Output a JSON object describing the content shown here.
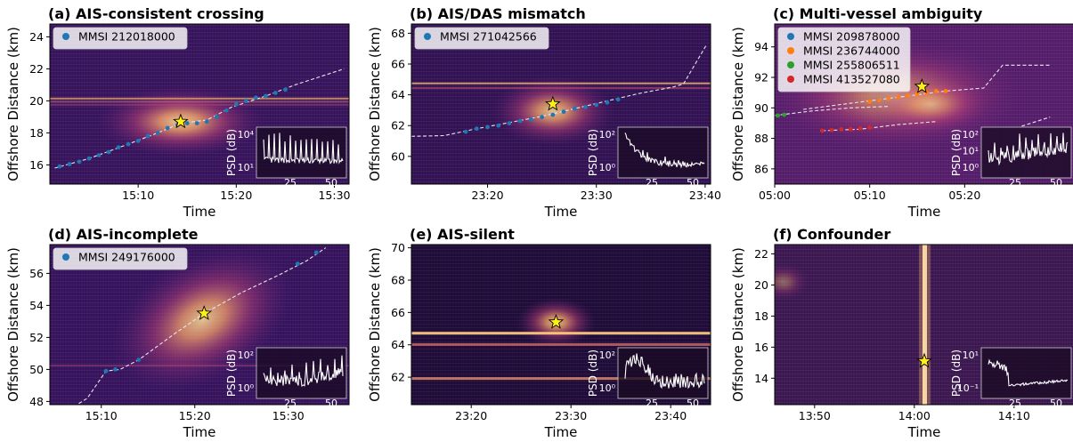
{
  "chart_data": [
    {
      "id": "a",
      "type": "scatter",
      "title": "(a) AIS-consistent crossing",
      "xlabel": "Time",
      "ylabel": "Offshore Distance (km)",
      "xlim": [
        "15:01:00",
        "15:31:30"
      ],
      "ylim": [
        14.8,
        24.8
      ],
      "xticks": [
        "15:10",
        "15:20",
        "15:30"
      ],
      "yticks": [
        16,
        18,
        20,
        22,
        24
      ],
      "legend": [
        {
          "name": "MMSI 212018000",
          "color": "#1f77b4"
        }
      ],
      "legend_position": "top-left",
      "event_star": {
        "x": "15:14:20",
        "y": 18.7
      },
      "track": [
        [
          "15:01:30",
          15.8
        ],
        [
          "15:05:00",
          16.4
        ],
        [
          "15:09:00",
          17.3
        ],
        [
          "15:12:00",
          18.0
        ],
        [
          "15:14:20",
          18.6
        ],
        [
          "15:17:00",
          18.8
        ],
        [
          "15:19:30",
          19.6
        ],
        [
          "15:23:00",
          20.3
        ],
        [
          "15:26:00",
          21.0
        ],
        [
          "15:31:00",
          22.0
        ]
      ],
      "ais_points": [
        [
          "15:02",
          15.9
        ],
        [
          "15:03",
          16.05
        ],
        [
          "15:04",
          16.2
        ],
        [
          "15:05",
          16.4
        ],
        [
          "15:06",
          16.6
        ],
        [
          "15:07",
          16.8
        ],
        [
          "15:08",
          17.1
        ],
        [
          "15:09",
          17.3
        ],
        [
          "15:10",
          17.5
        ],
        [
          "15:11",
          17.8
        ],
        [
          "15:12",
          18.0
        ],
        [
          "15:13",
          18.3
        ],
        [
          "15:14",
          18.5
        ],
        [
          "15:15",
          18.6
        ],
        [
          "15:16",
          18.6
        ],
        [
          "15:17",
          18.7
        ],
        [
          "15:18",
          19.0
        ],
        [
          "15:19",
          19.4
        ],
        [
          "15:20",
          19.8
        ],
        [
          "15:21",
          20.0
        ],
        [
          "15:22",
          20.2
        ],
        [
          "15:23",
          20.3
        ],
        [
          "15:24",
          20.5
        ],
        [
          "15:25",
          20.7
        ]
      ],
      "inset": {
        "ylabel": "PSD (dB)",
        "yticks": [
          "10¹",
          "10⁴"
        ],
        "xticks": [
          "25",
          "50"
        ],
        "shape": "peaky"
      }
    },
    {
      "id": "b",
      "type": "scatter",
      "title": "(b) AIS/DAS mismatch",
      "xlabel": "Time",
      "ylabel": "Offshore Distance (km)",
      "xlim": [
        "23:13:00",
        "23:40:30"
      ],
      "ylim": [
        58.2,
        68.6
      ],
      "xticks": [
        "23:20",
        "23:30",
        "23:40"
      ],
      "yticks": [
        60,
        62,
        64,
        66,
        68
      ],
      "legend": [
        {
          "name": "MMSI 271042566",
          "color": "#1f77b4"
        }
      ],
      "legend_position": "top-left",
      "event_star": {
        "x": "23:26:00",
        "y": 63.4
      },
      "track": [
        [
          "23:13:00",
          61.3
        ],
        [
          "23:16:00",
          61.35
        ],
        [
          "23:19:00",
          61.8
        ],
        [
          "23:22:00",
          62.2
        ],
        [
          "23:25:00",
          62.6
        ],
        [
          "23:28:00",
          63.1
        ],
        [
          "23:31:00",
          63.6
        ],
        [
          "23:34:00",
          64.1
        ],
        [
          "23:37:00",
          64.5
        ],
        [
          "23:38:00",
          64.7
        ],
        [
          "23:40:10",
          67.3
        ]
      ],
      "ais_points": [
        [
          "23:18",
          61.6
        ],
        [
          "23:19",
          61.8
        ],
        [
          "23:20",
          61.9
        ],
        [
          "23:21",
          62.0
        ],
        [
          "23:22",
          62.15
        ],
        [
          "23:23",
          62.3
        ],
        [
          "23:24",
          62.4
        ],
        [
          "23:25",
          62.55
        ],
        [
          "23:26",
          62.7
        ],
        [
          "23:27",
          62.9
        ],
        [
          "23:28",
          63.1
        ],
        [
          "23:29",
          63.2
        ],
        [
          "23:30",
          63.35
        ],
        [
          "23:31",
          63.5
        ],
        [
          "23:32",
          63.7
        ]
      ],
      "inset": {
        "ylabel": "PSD (dB)",
        "yticks": [
          "10⁰",
          "10²"
        ],
        "xticks": [
          "25",
          "50"
        ],
        "shape": "decay"
      }
    },
    {
      "id": "c",
      "type": "scatter",
      "title": "(c) Multi-vessel ambiguity",
      "xlabel": "Time",
      "ylabel": "Offshore Distance (km)",
      "xlim": [
        "05:00:00",
        "05:31:30"
      ],
      "ylim": [
        85.0,
        95.5
      ],
      "xticks": [
        "05:00",
        "05:10",
        "05:20"
      ],
      "yticks": [
        86,
        88,
        90,
        92,
        94
      ],
      "legend": [
        {
          "name": "MMSI 209878000",
          "color": "#1f77b4"
        },
        {
          "name": "MMSI 236744000",
          "color": "#ff7f0e"
        },
        {
          "name": "MMSI 255806511",
          "color": "#2ca02c"
        },
        {
          "name": "MMSI 413527080",
          "color": "#d62728"
        }
      ],
      "legend_position": "top-left",
      "event_star": {
        "x": "05:15:30",
        "y": 91.4
      },
      "tracks": [
        {
          "color": "#ff7f0e",
          "points": [
            [
              "05:03:00",
              89.9
            ],
            [
              "05:08:00",
              90.3
            ],
            [
              "05:13:00",
              90.7
            ],
            [
              "05:18:00",
              91.1
            ],
            [
              "05:22:00",
              91.3
            ],
            [
              "05:24:00",
              92.8
            ],
            [
              "05:29:00",
              92.8
            ]
          ],
          "dots": [
            [
              "05:10",
              90.4
            ],
            [
              "05:11",
              90.5
            ],
            [
              "05:12",
              90.6
            ],
            [
              "05:13",
              90.7
            ],
            [
              "05:14",
              90.8
            ],
            [
              "05:15",
              90.9
            ],
            [
              "05:16",
              91.0
            ],
            [
              "05:17",
              91.1
            ],
            [
              "05:18",
              91.1
            ]
          ]
        },
        {
          "color": "#2ca02c",
          "points": [
            [
              "05:00:00",
              89.5
            ],
            [
              "05:04:00",
              89.8
            ],
            [
              "05:08:00",
              90.0
            ],
            [
              "05:12:00",
              90.1
            ]
          ],
          "dots": [
            [
              "05:00:20",
              89.5
            ],
            [
              "05:01",
              89.55
            ]
          ]
        },
        {
          "color": "#d62728",
          "points": [
            [
              "05:05:00",
              88.5
            ],
            [
              "05:09:00",
              88.6
            ],
            [
              "05:13:00",
              88.9
            ],
            [
              "05:17:00",
              89.1
            ]
          ],
          "dots": [
            [
              "05:05:00",
              88.5
            ],
            [
              "05:06",
              88.55
            ],
            [
              "05:07",
              88.6
            ],
            [
              "05:08",
              88.6
            ],
            [
              "05:09",
              88.65
            ],
            [
              "05:10",
              88.7
            ]
          ]
        },
        {
          "color": "#1f77b4",
          "points": [
            [
              "05:26:00",
              88.8
            ],
            [
              "05:29:00",
              89.4
            ]
          ],
          "dots": []
        }
      ],
      "inset": {
        "ylabel": "PSD (dB)",
        "yticks": [
          "10⁰",
          "10¹",
          "10²"
        ],
        "xticks": [
          "25",
          "50"
        ],
        "shape": "noisy"
      }
    },
    {
      "id": "d",
      "type": "scatter",
      "title": "(d) AIS-incomplete",
      "xlabel": "Time",
      "ylabel": "Offshore Distance (km)",
      "xlim": [
        "15:04:30",
        "15:36:30"
      ],
      "ylim": [
        47.8,
        57.8
      ],
      "xticks": [
        "15:10",
        "15:20",
        "15:30"
      ],
      "yticks": [
        48,
        50,
        52,
        54,
        56
      ],
      "legend": [
        {
          "name": "MMSI 249176000",
          "color": "#1f77b4"
        }
      ],
      "legend_position": "top-left",
      "event_star": {
        "x": "15:21:00",
        "y": 53.5
      },
      "track": [
        [
          "15:05:30",
          47.1
        ],
        [
          "15:08:30",
          48.2
        ],
        [
          "15:10:30",
          49.9
        ],
        [
          "15:12:00",
          50.0
        ],
        [
          "15:14:00",
          50.6
        ],
        [
          "15:18:00",
          52.3
        ],
        [
          "15:21:00",
          53.5
        ],
        [
          "15:25:00",
          54.8
        ],
        [
          "15:29:00",
          55.9
        ],
        [
          "15:32:00",
          56.8
        ],
        [
          "15:34:00",
          57.6
        ]
      ],
      "ais_points": [
        [
          "15:10:30",
          49.9
        ],
        [
          "15:11:30",
          50.0
        ],
        [
          "15:14:00",
          50.6
        ],
        [
          "15:31:00",
          56.6
        ],
        [
          "15:33:00",
          57.3
        ]
      ],
      "inset": {
        "ylabel": "PSD (dB)",
        "yticks": [
          "10⁰",
          "10²"
        ],
        "xticks": [
          "25",
          "50"
        ],
        "shape": "rising"
      }
    },
    {
      "id": "e",
      "type": "scatter",
      "title": "(e) AIS-silent",
      "xlabel": "Time",
      "ylabel": "Offshore Distance (km)",
      "xlim": [
        "23:14:00",
        "23:44:00"
      ],
      "ylim": [
        60.3,
        70.2
      ],
      "xticks": [
        "23:20",
        "23:30",
        "23:40"
      ],
      "yticks": [
        62,
        64,
        66,
        68,
        70
      ],
      "legend": [],
      "event_star": {
        "x": "23:28:30",
        "y": 65.4
      },
      "track": [],
      "ais_points": [],
      "inset": {
        "ylabel": "PSD (dB)",
        "yticks": [
          "10⁰",
          "10²"
        ],
        "xticks": [
          "25",
          "50"
        ],
        "shape": "broad"
      }
    },
    {
      "id": "f",
      "type": "scatter",
      "title": "(f) Confounder",
      "xlabel": "Time",
      "ylabel": "Offshore Distance (km)",
      "xlim": [
        "13:46:00",
        "14:16:00"
      ],
      "ylim": [
        12.3,
        22.6
      ],
      "xticks": [
        "13:50",
        "14:00",
        "14:10"
      ],
      "yticks": [
        14,
        16,
        18,
        20,
        22
      ],
      "legend": [],
      "event_star": {
        "x": "14:01:00",
        "y": 15.1
      },
      "track": [],
      "ais_points": [],
      "inset": {
        "ylabel": "PSD (dB)",
        "yticks": [
          "10⁻¹",
          "10¹"
        ],
        "xticks": [
          "25",
          "50"
        ],
        "shape": "lowpass"
      }
    }
  ]
}
